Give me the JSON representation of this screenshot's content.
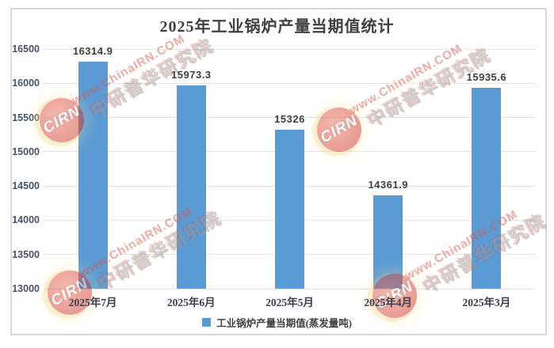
{
  "title": "2025年工业锅炉产量当期值统计",
  "chart_data": {
    "type": "bar",
    "title": "2025年工业锅炉产量当期值统计",
    "categories": [
      "2025年7月",
      "2025年6月",
      "2025年5月",
      "2025年4月",
      "2025年3月"
    ],
    "values": [
      16314.9,
      15973.3,
      15326,
      14361.9,
      15935.6
    ],
    "value_labels": [
      "16314.9",
      "15973.3",
      "15326",
      "14361.9",
      "15935.6"
    ],
    "yticks": [
      16500,
      16000,
      15500,
      15000,
      14500,
      14000,
      13500,
      13000
    ],
    "ylim": [
      13000,
      16500
    ],
    "grid": true,
    "legend_position": "bottom",
    "legend": [
      "工业锅炉产量当期值(蒸发量吨)"
    ],
    "bar_color": "#5B9BD5"
  },
  "legend": {
    "label": "工业锅炉产量当期值(蒸发量吨)",
    "swatch_color": "#5B9BD5"
  },
  "watermark": {
    "logo_text": "CIRN",
    "site_url": "www.ChinaIRN.COM",
    "brand_name": "中研普华研究院"
  },
  "colors": {
    "bar": "#5B9BD5",
    "gridline": "#e2e2e2",
    "frame_border": "#d9d9d9",
    "text": "#404040",
    "watermark_red": "#e2544a",
    "watermark_gray": "#9a9a9a"
  }
}
